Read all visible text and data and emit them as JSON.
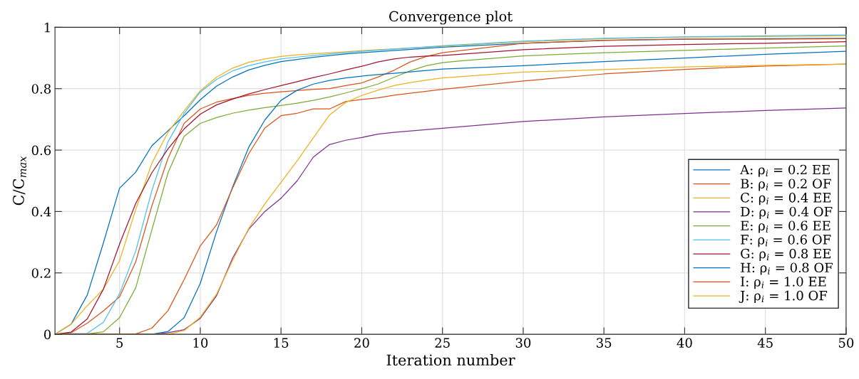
{
  "chart_data": {
    "type": "line",
    "title": "Convergence plot",
    "xlabel": "Iteration number",
    "ylabel": "C/C$_{max}$",
    "xlim": [
      1,
      50
    ],
    "xticks": [
      5,
      10,
      15,
      20,
      25,
      30,
      35,
      40,
      45,
      50
    ],
    "ylim": [
      0,
      1
    ],
    "yticks": [
      0,
      0.2,
      0.4,
      0.6,
      0.8,
      1
    ],
    "grid": true,
    "legend": "lower right",
    "marker": "none",
    "line_style": "solid",
    "series": [
      {
        "name": "A: ρ$_{i}$ = 0.2 EE",
        "color": "#0072bd",
        "x": [
          1,
          2,
          3,
          4,
          5,
          6,
          7,
          8,
          9,
          10,
          11,
          12,
          13,
          14,
          15,
          16,
          17,
          18,
          19,
          20,
          25,
          30,
          35,
          40,
          45,
          50
        ],
        "values": [
          0,
          0.033,
          0.128,
          0.298,
          0.476,
          0.528,
          0.614,
          0.663,
          0.712,
          0.764,
          0.808,
          0.838,
          0.861,
          0.876,
          0.888,
          0.895,
          0.902,
          0.908,
          0.913,
          0.917,
          0.935,
          0.948,
          0.957,
          0.961,
          0.963,
          0.964
        ]
      },
      {
        "name": "B: ρ$_{i}$ = 0.2 OF",
        "color": "#d95319",
        "x": [
          1,
          2,
          3,
          4,
          5,
          6,
          7,
          8,
          9,
          10,
          11,
          12,
          13,
          14,
          15,
          16,
          17,
          18,
          19,
          20,
          21,
          22,
          23,
          24,
          25,
          30,
          35,
          40,
          45,
          50
        ],
        "values": [
          0,
          0.005,
          0.036,
          0.076,
          0.122,
          0.236,
          0.418,
          0.573,
          0.687,
          0.734,
          0.756,
          0.768,
          0.778,
          0.785,
          0.79,
          0.794,
          0.798,
          0.8,
          0.81,
          0.819,
          0.838,
          0.86,
          0.887,
          0.905,
          0.917,
          0.948,
          0.958,
          0.962,
          0.961,
          0.963
        ]
      },
      {
        "name": "C: ρ$_{i}$ = 0.4 EE",
        "color": "#edb120",
        "x": [
          1,
          2,
          3,
          4,
          5,
          6,
          7,
          8,
          9,
          10,
          11,
          12,
          13,
          14,
          15,
          16,
          17,
          18,
          19,
          20,
          25,
          30,
          35,
          40,
          45,
          50
        ],
        "values": [
          0,
          0.033,
          0.093,
          0.147,
          0.24,
          0.406,
          0.557,
          0.658,
          0.728,
          0.793,
          0.837,
          0.867,
          0.886,
          0.897,
          0.905,
          0.91,
          0.914,
          0.917,
          0.92,
          0.924,
          0.938,
          0.953,
          0.963,
          0.968,
          0.97,
          0.972
        ]
      },
      {
        "name": "D: ρ$_{i}$ = 0.4 OF",
        "color": "#7e2f8e",
        "x": [
          1,
          7,
          8,
          9,
          10,
          11,
          12,
          13,
          14,
          15,
          16,
          17,
          18,
          19,
          20,
          21,
          22,
          25,
          30,
          35,
          40,
          45,
          50
        ],
        "values": [
          0,
          0,
          0.005,
          0.015,
          0.052,
          0.125,
          0.248,
          0.342,
          0.4,
          0.443,
          0.5,
          0.577,
          0.618,
          0.632,
          0.641,
          0.652,
          0.658,
          0.671,
          0.693,
          0.708,
          0.719,
          0.729,
          0.737
        ]
      },
      {
        "name": "E: ρ$_{i}$ = 0.6 EE",
        "color": "#77ac30",
        "x": [
          1,
          2,
          3,
          4,
          5,
          6,
          7,
          8,
          9,
          10,
          11,
          12,
          13,
          14,
          15,
          16,
          17,
          18,
          19,
          20,
          21,
          22,
          23,
          24,
          25,
          26,
          30,
          35,
          40,
          45,
          50
        ],
        "values": [
          0,
          0,
          0.001,
          0.008,
          0.054,
          0.151,
          0.34,
          0.526,
          0.645,
          0.687,
          0.706,
          0.72,
          0.73,
          0.738,
          0.745,
          0.753,
          0.762,
          0.773,
          0.786,
          0.8,
          0.815,
          0.837,
          0.858,
          0.875,
          0.885,
          0.89,
          0.907,
          0.917,
          0.925,
          0.932,
          0.939
        ]
      },
      {
        "name": "F: ρ$_{i}$ = 0.6 OF",
        "color": "#4dbeee",
        "x": [
          1,
          2,
          3,
          4,
          5,
          6,
          7,
          8,
          9,
          10,
          11,
          12,
          13,
          14,
          15,
          16,
          17,
          18,
          19,
          20,
          25,
          30,
          35,
          40,
          45,
          50
        ],
        "values": [
          0,
          0.002,
          0.003,
          0.039,
          0.132,
          0.271,
          0.468,
          0.627,
          0.72,
          0.789,
          0.83,
          0.858,
          0.875,
          0.887,
          0.897,
          0.903,
          0.908,
          0.913,
          0.917,
          0.922,
          0.94,
          0.955,
          0.964,
          0.969,
          0.972,
          0.975
        ]
      },
      {
        "name": "G: ρ$_{i}$ = 0.8 EE",
        "color": "#a2142f",
        "x": [
          1,
          2,
          3,
          4,
          5,
          6,
          7,
          8,
          9,
          10,
          11,
          12,
          13,
          14,
          15,
          16,
          17,
          18,
          19,
          20,
          21,
          22,
          23,
          24,
          25,
          30,
          35,
          40,
          45,
          50
        ],
        "values": [
          0,
          0.007,
          0.05,
          0.147,
          0.294,
          0.426,
          0.526,
          0.604,
          0.669,
          0.717,
          0.747,
          0.766,
          0.783,
          0.797,
          0.81,
          0.823,
          0.836,
          0.848,
          0.861,
          0.873,
          0.887,
          0.897,
          0.903,
          0.906,
          0.908,
          0.927,
          0.938,
          0.944,
          0.948,
          0.953
        ]
      },
      {
        "name": "H: ρ$_{i}$ = 0.8 OF",
        "color": "#0072bd",
        "x": [
          1,
          7,
          8,
          9,
          10,
          11,
          12,
          13,
          14,
          15,
          16,
          17,
          18,
          19,
          20,
          21,
          22,
          25,
          30,
          35,
          40,
          45,
          50
        ],
        "values": [
          0,
          0,
          0.009,
          0.054,
          0.166,
          0.333,
          0.48,
          0.609,
          0.698,
          0.762,
          0.795,
          0.815,
          0.827,
          0.835,
          0.841,
          0.846,
          0.85,
          0.864,
          0.875,
          0.888,
          0.9,
          0.912,
          0.922
        ]
      },
      {
        "name": "I: ρ$_{i}$ = 1.0 EE",
        "color": "#d95319",
        "x": [
          1,
          6,
          7,
          8,
          9,
          10,
          11,
          12,
          13,
          14,
          15,
          16,
          17,
          18,
          19,
          20,
          21,
          22,
          25,
          30,
          35,
          40,
          45,
          50
        ],
        "values": [
          0,
          0.001,
          0.02,
          0.077,
          0.178,
          0.288,
          0.356,
          0.476,
          0.588,
          0.672,
          0.712,
          0.72,
          0.734,
          0.734,
          0.758,
          0.765,
          0.77,
          0.779,
          0.798,
          0.825,
          0.848,
          0.863,
          0.874,
          0.88
        ]
      },
      {
        "name": "J: ρ$_{i}$ = 1.0 OF",
        "color": "#edb120",
        "x": [
          1,
          8,
          9,
          10,
          11,
          12,
          13,
          14,
          15,
          16,
          17,
          18,
          19,
          20,
          21,
          22,
          23,
          24,
          25,
          30,
          35,
          40,
          45,
          50
        ],
        "values": [
          0,
          0,
          0.012,
          0.056,
          0.13,
          0.24,
          0.345,
          0.425,
          0.495,
          0.565,
          0.64,
          0.714,
          0.755,
          0.778,
          0.795,
          0.81,
          0.82,
          0.828,
          0.835,
          0.854,
          0.862,
          0.871,
          0.876,
          0.88
        ]
      }
    ]
  }
}
